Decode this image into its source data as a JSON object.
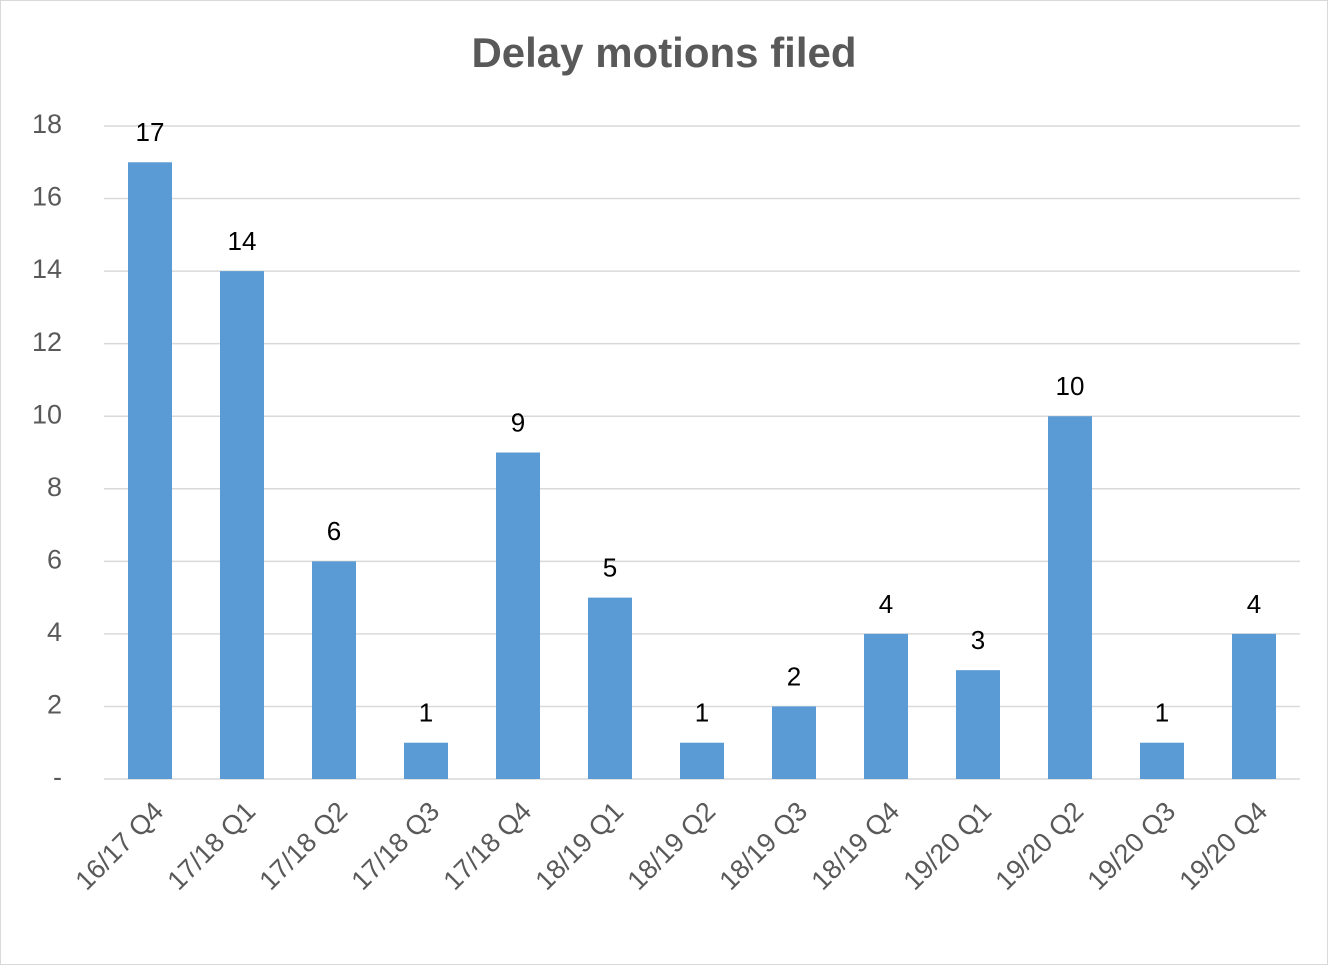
{
  "chart_data": {
    "type": "bar",
    "title": "Delay motions filed",
    "categories": [
      "16/17 Q4",
      "17/18 Q1",
      "17/18 Q2",
      "17/18 Q3",
      "17/18 Q4",
      "18/19 Q1",
      "18/19 Q2",
      "18/19 Q3",
      "18/19 Q4",
      "19/20 Q1",
      "19/20 Q2",
      "19/20 Q3",
      "19/20 Q4"
    ],
    "values": [
      17,
      14,
      6,
      1,
      9,
      5,
      1,
      2,
      4,
      3,
      10,
      1,
      4
    ],
    "color": "#5b9bd5",
    "ylim": [
      0,
      18
    ],
    "yticks": [
      {
        "value": 0,
        "label": "-"
      },
      2,
      4,
      6,
      8,
      10,
      12,
      14,
      16,
      18
    ],
    "grid": true
  }
}
